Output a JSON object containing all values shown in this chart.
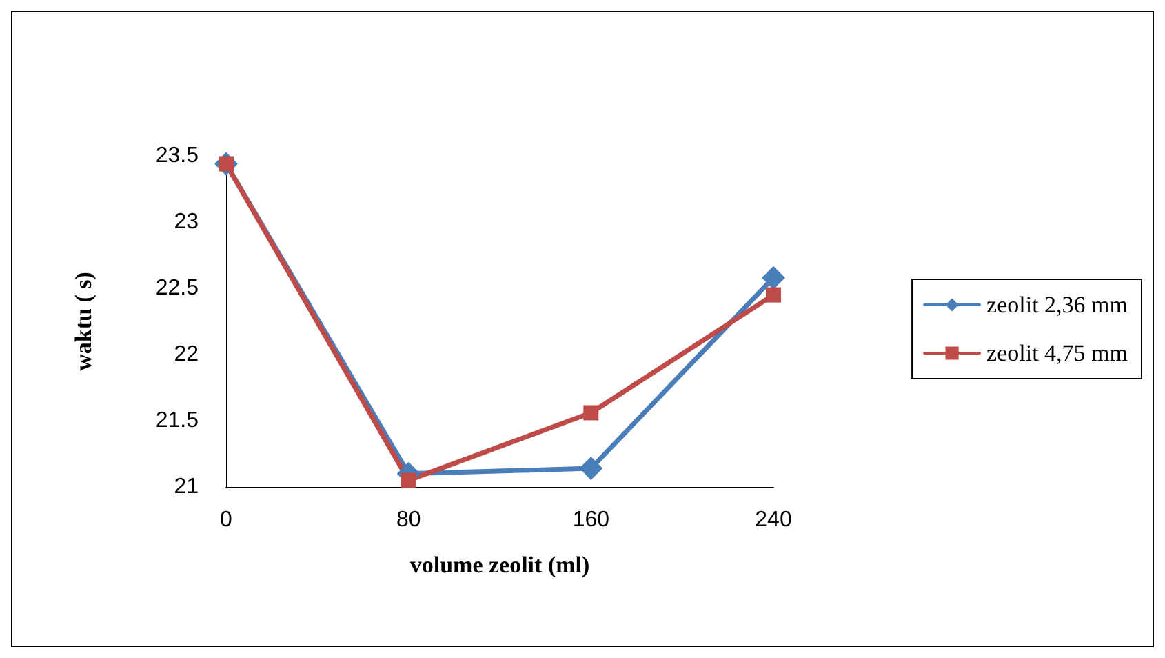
{
  "chart_data": {
    "type": "line",
    "xlabel": "volume zeolit (ml)",
    "ylabel": "waktu ( s)",
    "categories": [
      "0",
      "80",
      "160",
      "240"
    ],
    "ylim": [
      21,
      23.5
    ],
    "yticks": [
      21,
      21.5,
      22,
      22.5,
      23,
      23.5
    ],
    "grid": false,
    "legend": "right",
    "line_style": "solid",
    "series": [
      {
        "name": "zeolit 2,36 mm",
        "color": "#4a7ebb",
        "marker": "diamond",
        "values": [
          23.44,
          21.1,
          21.14,
          22.58
        ]
      },
      {
        "name": "zeolit 4,75 mm",
        "color": "#be4b48",
        "marker": "square",
        "values": [
          23.44,
          21.05,
          21.56,
          22.45
        ]
      }
    ]
  }
}
